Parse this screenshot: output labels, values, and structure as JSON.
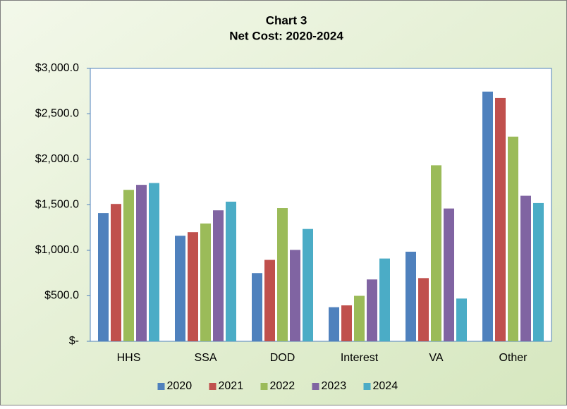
{
  "chart_data": {
    "type": "bar",
    "title": "Chart 3",
    "subtitle": "Net Cost: 2020-2024",
    "categories": [
      "HHS",
      "SSA",
      "DOD",
      "Interest",
      "VA",
      "Other"
    ],
    "series": [
      {
        "name": "2020",
        "color": "#4f81bd",
        "values": [
          1410,
          1160,
          750,
          375,
          985,
          2745
        ]
      },
      {
        "name": "2021",
        "color": "#c0504d",
        "values": [
          1510,
          1200,
          895,
          395,
          695,
          2675
        ]
      },
      {
        "name": "2022",
        "color": "#9bbb59",
        "values": [
          1665,
          1295,
          1465,
          500,
          1935,
          2250
        ]
      },
      {
        "name": "2023",
        "color": "#8064a2",
        "values": [
          1720,
          1440,
          1005,
          680,
          1460,
          1600
        ]
      },
      {
        "name": "2024",
        "color": "#4bacc6",
        "values": [
          1740,
          1535,
          1235,
          910,
          470,
          1520
        ]
      }
    ],
    "ylim": [
      0,
      3000
    ],
    "yticks": [
      {
        "value": 0,
        "label": "$-"
      },
      {
        "value": 500,
        "label": "$500.0"
      },
      {
        "value": 1000,
        "label": "$1,000.0"
      },
      {
        "value": 1500,
        "label": "$1,500.0"
      },
      {
        "value": 2000,
        "label": "$2,000.0"
      },
      {
        "value": 2500,
        "label": "$2,500.0"
      },
      {
        "value": 3000,
        "label": "$3,000.0"
      }
    ],
    "grid": false,
    "legend": "bottom"
  }
}
